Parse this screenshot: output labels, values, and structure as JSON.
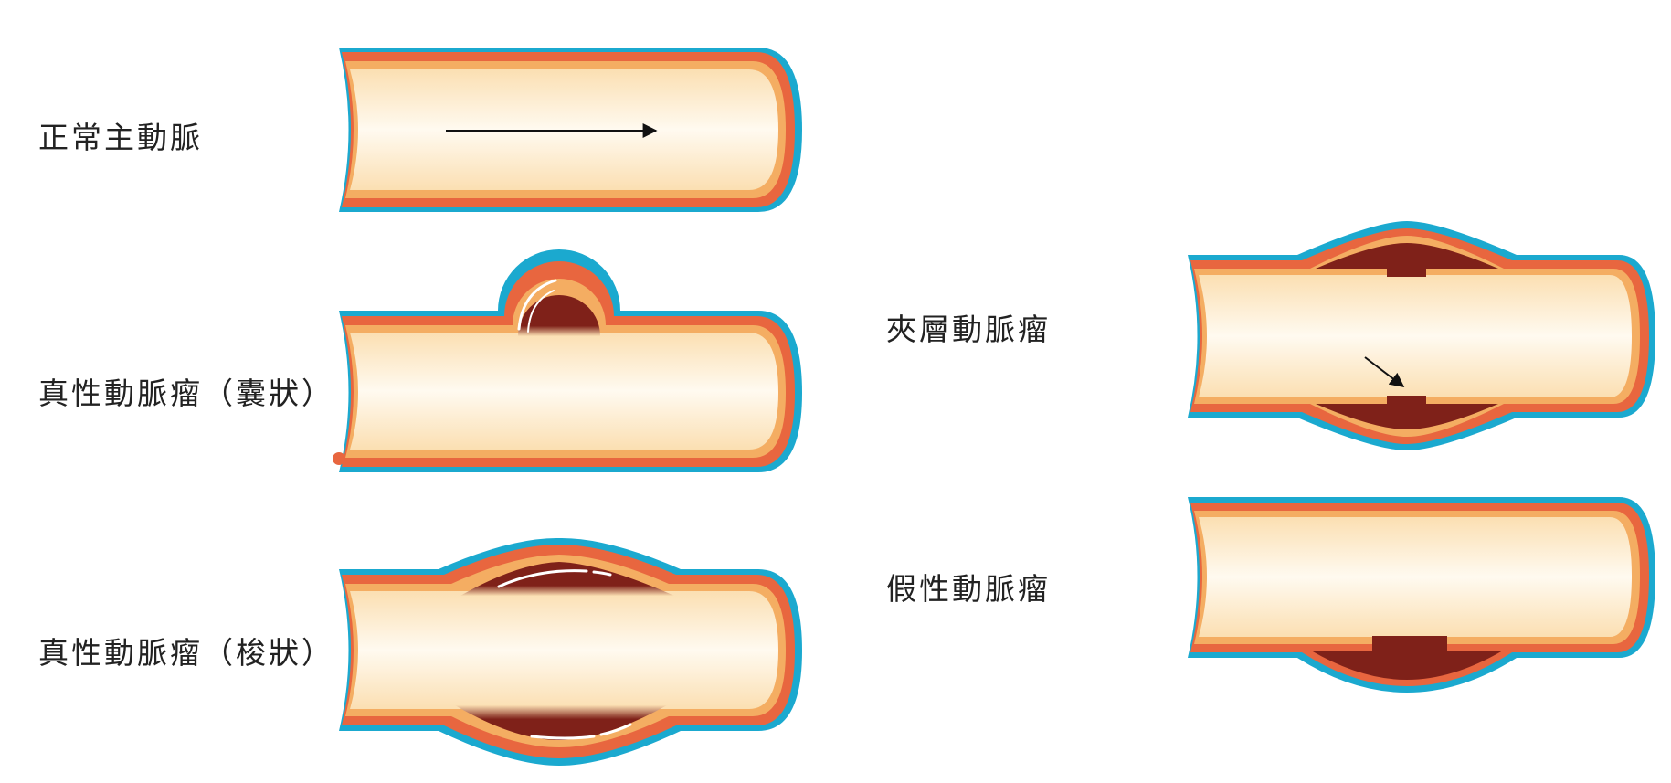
{
  "labels": {
    "normal_aorta": "正常主動脈",
    "true_aneurysm_saccular": "真性動脈瘤（囊狀）",
    "true_aneurysm_fusiform": "真性動脈瘤（梭狀）",
    "dissecting_aneurysm": "夾層動脈瘤",
    "pseudo_aneurysm": "假性動脈瘤"
  },
  "colors": {
    "adventitia": "#1ba9cf",
    "media": "#e8663f",
    "intima": "#f4ad62",
    "lumen_light": "#fffaf0",
    "lumen_dark": "#fbdfb2",
    "thrombus": "#7f2119",
    "highlight": "#ffffff",
    "arrow": "#111111"
  }
}
